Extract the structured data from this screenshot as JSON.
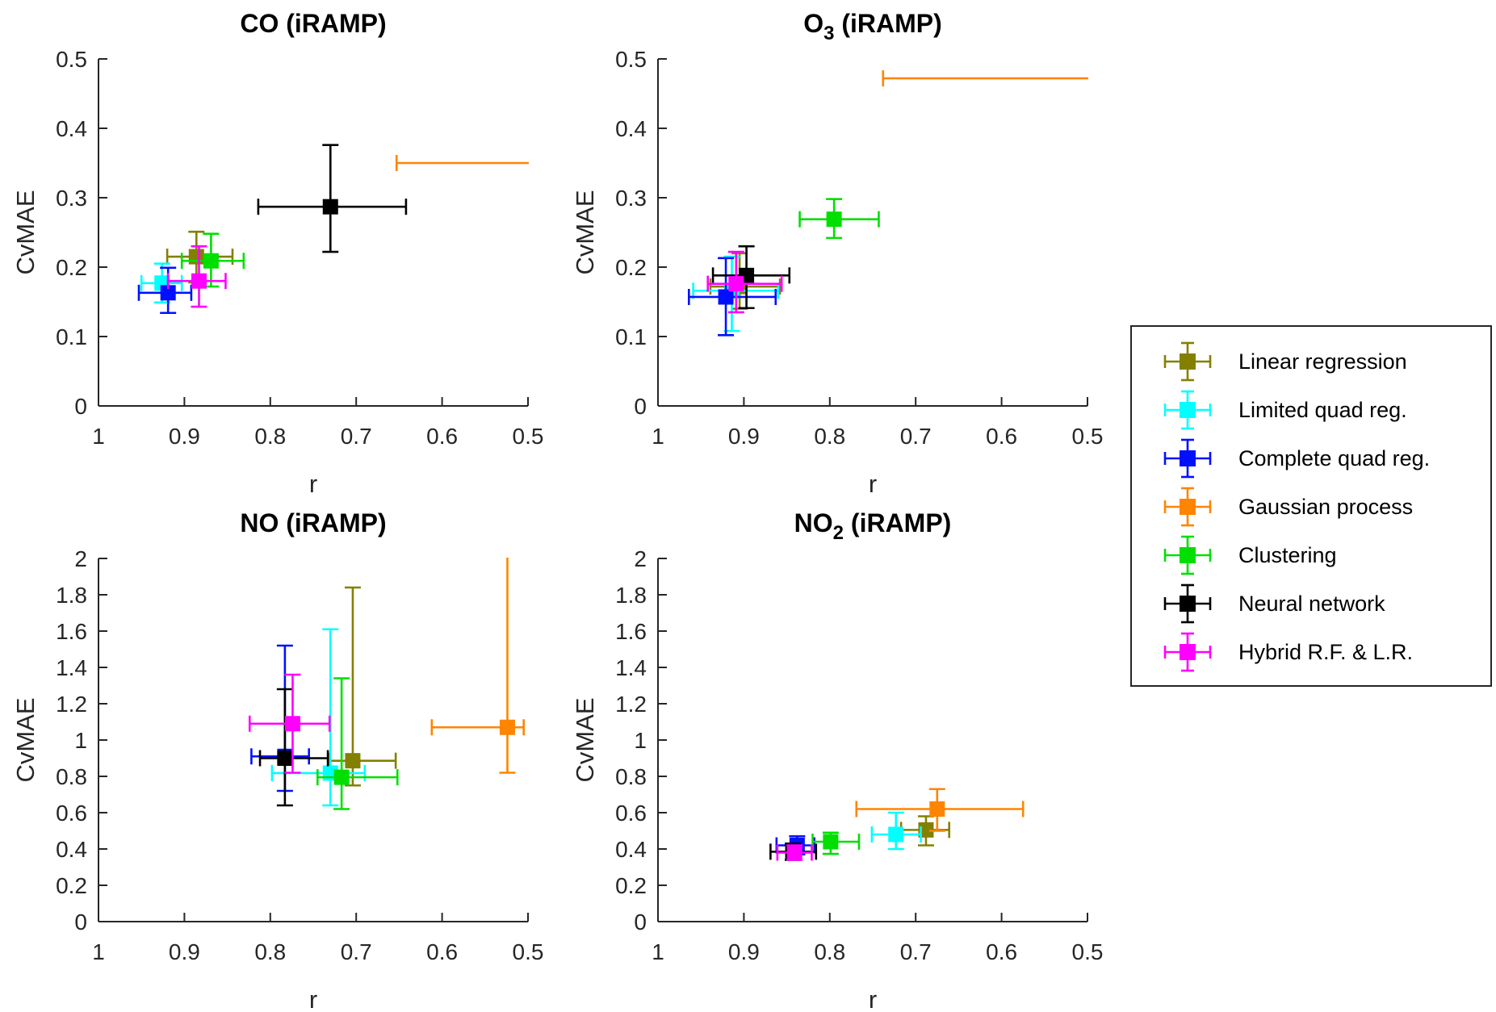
{
  "figure": {
    "background": "#ffffff",
    "axis_color": "#262626",
    "xlabel": "r",
    "ylabel": "CvMAE"
  },
  "legend": {
    "position": "outside-right",
    "items": [
      {
        "label": "Linear regression",
        "color": "#838000"
      },
      {
        "label": "Limited quad reg.",
        "color": "#00FFFF"
      },
      {
        "label": "Complete quad reg.",
        "color": "#0010FF"
      },
      {
        "label": "Gaussian process",
        "color": "#FF8400"
      },
      {
        "label": "Clustering",
        "color": "#00DF00"
      },
      {
        "label": "Neural network",
        "color": "#000000"
      },
      {
        "label": "Hybrid R.F. & L.R.",
        "color": "#FF00FF"
      }
    ]
  },
  "chart_data": [
    {
      "type": "scatter",
      "title": {
        "pre": "CO",
        "sub": "",
        "post": " (iRAMP)"
      },
      "xlabel": "r",
      "ylabel": "CvMAE",
      "xlim": [
        1,
        0.5
      ],
      "x_reversed": true,
      "ylim": [
        0,
        0.5
      ],
      "xticks": [
        "1",
        "0.9",
        "0.8",
        "0.7",
        "0.6",
        "0.5"
      ],
      "yticks": [
        "0",
        "0.1",
        "0.2",
        "0.3",
        "0.4",
        "0.5"
      ],
      "grid": false,
      "series": [
        {
          "name": "Linear regression",
          "r": 0.886,
          "cvmae": 0.215,
          "r_err": [
            0.92,
            0.844
          ],
          "cvmae_err": [
            0.178,
            0.251
          ]
        },
        {
          "name": "Limited quad reg.",
          "r": 0.926,
          "cvmae": 0.177,
          "r_err": [
            0.95,
            0.903
          ],
          "cvmae_err": [
            0.149,
            0.205
          ]
        },
        {
          "name": "Complete quad reg.",
          "r": 0.919,
          "cvmae": 0.163,
          "r_err": [
            0.953,
            0.892
          ],
          "cvmae_err": [
            0.134,
            0.199
          ]
        },
        {
          "name": "Gaussian process",
          "r": 0.45,
          "cvmae": 0.35,
          "r_err": [
            0.653,
            0.45
          ],
          "cvmae_err": [
            0.35,
            0.35
          ],
          "marker_offscale": true
        },
        {
          "name": "Clustering",
          "r": 0.869,
          "cvmae": 0.209,
          "r_err": [
            0.903,
            0.831
          ],
          "cvmae_err": [
            0.172,
            0.248
          ]
        },
        {
          "name": "Neural network",
          "r": 0.73,
          "cvmae": 0.287,
          "r_err": [
            0.814,
            0.642
          ],
          "cvmae_err": [
            0.222,
            0.376
          ]
        },
        {
          "name": "Hybrid R.F. & L.R.",
          "r": 0.883,
          "cvmae": 0.18,
          "r_err": [
            0.919,
            0.852
          ],
          "cvmae_err": [
            0.143,
            0.23
          ]
        }
      ]
    },
    {
      "type": "scatter",
      "title": {
        "pre": "O",
        "sub": "3",
        "post": " (iRAMP)"
      },
      "xlabel": "r",
      "ylabel": "CvMAE",
      "xlim": [
        1,
        0.5
      ],
      "x_reversed": true,
      "ylim": [
        0,
        0.5
      ],
      "xticks": [
        "1",
        "0.9",
        "0.8",
        "0.7",
        "0.6",
        "0.5"
      ],
      "yticks": [
        "0",
        "0.1",
        "0.2",
        "0.3",
        "0.4",
        "0.5"
      ],
      "grid": false,
      "series": [
        {
          "name": "Linear regression",
          "r": 0.905,
          "cvmae": 0.172,
          "r_err": [
            0.939,
            0.858
          ],
          "cvmae_err": [
            0.14,
            0.22
          ]
        },
        {
          "name": "Limited quad reg.",
          "r": 0.914,
          "cvmae": 0.166,
          "r_err": [
            0.959,
            0.86
          ],
          "cvmae_err": [
            0.108,
            0.215
          ]
        },
        {
          "name": "Complete quad reg.",
          "r": 0.921,
          "cvmae": 0.157,
          "r_err": [
            0.964,
            0.863
          ],
          "cvmae_err": [
            0.102,
            0.213
          ]
        },
        {
          "name": "Gaussian process",
          "r": 0.45,
          "cvmae": 0.472,
          "r_err": [
            0.738,
            0.45
          ],
          "cvmae_err": [
            0.472,
            0.472
          ],
          "marker_offscale": true
        },
        {
          "name": "Clustering",
          "r": 0.795,
          "cvmae": 0.269,
          "r_err": [
            0.835,
            0.743
          ],
          "cvmae_err": [
            0.242,
            0.298
          ]
        },
        {
          "name": "Neural network",
          "r": 0.897,
          "cvmae": 0.188,
          "r_err": [
            0.936,
            0.847
          ],
          "cvmae_err": [
            0.141,
            0.23
          ]
        },
        {
          "name": "Hybrid R.F. & L.R.",
          "r": 0.909,
          "cvmae": 0.176,
          "r_err": [
            0.942,
            0.856
          ],
          "cvmae_err": [
            0.135,
            0.222
          ]
        }
      ]
    },
    {
      "type": "scatter",
      "title": {
        "pre": "NO",
        "sub": "",
        "post": " (iRAMP)"
      },
      "xlabel": "r",
      "ylabel": "CvMAE",
      "xlim": [
        1,
        0.5
      ],
      "x_reversed": true,
      "ylim": [
        0,
        2
      ],
      "xticks": [
        "1",
        "0.9",
        "0.8",
        "0.7",
        "0.6",
        "0.5"
      ],
      "yticks": [
        "0",
        "0.2",
        "0.4",
        "0.6",
        "0.8",
        "1",
        "1.2",
        "1.4",
        "1.6",
        "1.8",
        "2"
      ],
      "grid": false,
      "series": [
        {
          "name": "Linear regression",
          "r": 0.704,
          "cvmae": 0.886,
          "r_err": [
            0.731,
            0.654
          ],
          "cvmae_err": [
            0.75,
            1.84
          ]
        },
        {
          "name": "Limited quad reg.",
          "r": 0.73,
          "cvmae": 0.818,
          "r_err": [
            0.798,
            0.69
          ],
          "cvmae_err": [
            0.64,
            1.61
          ]
        },
        {
          "name": "Complete quad reg.",
          "r": 0.783,
          "cvmae": 0.91,
          "r_err": [
            0.822,
            0.755
          ],
          "cvmae_err": [
            0.72,
            1.52
          ]
        },
        {
          "name": "Gaussian process",
          "r": 0.524,
          "cvmae": 1.07,
          "r_err": [
            0.612,
            0.505
          ],
          "cvmae_err": [
            0.82,
            2.02
          ],
          "clipped_top": true
        },
        {
          "name": "Clustering",
          "r": 0.717,
          "cvmae": 0.795,
          "r_err": [
            0.745,
            0.652
          ],
          "cvmae_err": [
            0.62,
            1.34
          ]
        },
        {
          "name": "Neural network",
          "r": 0.783,
          "cvmae": 0.9,
          "r_err": [
            0.812,
            0.733
          ],
          "cvmae_err": [
            0.64,
            1.28
          ]
        },
        {
          "name": "Hybrid R.F. & L.R.",
          "r": 0.774,
          "cvmae": 1.09,
          "r_err": [
            0.824,
            0.731
          ],
          "cvmae_err": [
            0.82,
            1.36
          ]
        }
      ]
    },
    {
      "type": "scatter",
      "title": {
        "pre": "NO",
        "sub": "2",
        "post": " (iRAMP)"
      },
      "xlabel": "r",
      "ylabel": "CvMAE",
      "xlim": [
        1,
        0.5
      ],
      "x_reversed": true,
      "ylim": [
        0,
        2
      ],
      "xticks": [
        "1",
        "0.9",
        "0.8",
        "0.7",
        "0.6",
        "0.5"
      ],
      "yticks": [
        "0",
        "0.2",
        "0.4",
        "0.6",
        "0.8",
        "1",
        "1.2",
        "1.4",
        "1.6",
        "1.8",
        "2"
      ],
      "grid": false,
      "series": [
        {
          "name": "Linear regression",
          "r": 0.688,
          "cvmae": 0.505,
          "r_err": [
            0.717,
            0.661
          ],
          "cvmae_err": [
            0.42,
            0.58
          ]
        },
        {
          "name": "Limited quad reg.",
          "r": 0.723,
          "cvmae": 0.48,
          "r_err": [
            0.751,
            0.694
          ],
          "cvmae_err": [
            0.4,
            0.6
          ]
        },
        {
          "name": "Complete quad reg.",
          "r": 0.838,
          "cvmae": 0.42,
          "r_err": [
            0.862,
            0.818
          ],
          "cvmae_err": [
            0.37,
            0.47
          ]
        },
        {
          "name": "Gaussian process",
          "r": 0.675,
          "cvmae": 0.62,
          "r_err": [
            0.769,
            0.575
          ],
          "cvmae_err": [
            0.5,
            0.73
          ]
        },
        {
          "name": "Clustering",
          "r": 0.799,
          "cvmae": 0.44,
          "r_err": [
            0.82,
            0.766
          ],
          "cvmae_err": [
            0.373,
            0.49
          ]
        },
        {
          "name": "Neural network",
          "r": 0.843,
          "cvmae": 0.385,
          "r_err": [
            0.869,
            0.816
          ],
          "cvmae_err": [
            0.34,
            0.43
          ]
        },
        {
          "name": "Hybrid R.F. & L.R.",
          "r": 0.841,
          "cvmae": 0.38,
          "r_err": [
            0.861,
            0.821
          ],
          "cvmae_err": [
            0.34,
            0.42
          ]
        }
      ]
    }
  ]
}
